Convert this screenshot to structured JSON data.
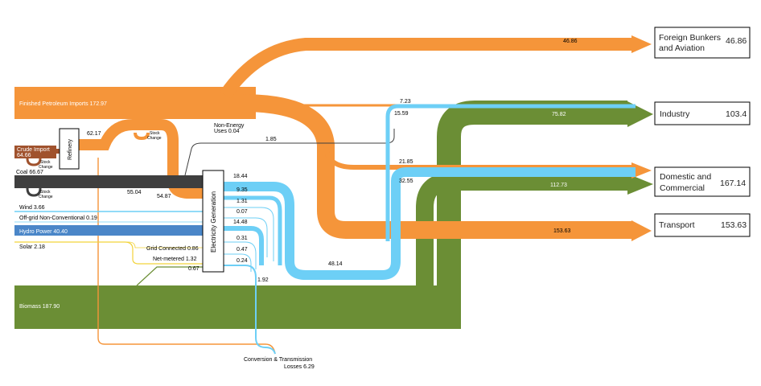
{
  "flows": {
    "finished_petroleum": "Finished Petroleum Imports 172.97",
    "crude_import": "Crude Import",
    "crude_value": "64.66",
    "stock_change": "Stock",
    "stock_change_2": "Change",
    "coal": "Coal 66.67",
    "wind": "Wind 3.66",
    "offgrid": "Off-grid Non-Conventional 0.19",
    "hydro": "Hydro Power  40.40",
    "solar": "Solar  2.18",
    "grid_connected": "Grid Connected  0.86",
    "net_metered": "Net-metered  1.32",
    "biomass": "Biomass 187.90",
    "non_energy": "Non-Energy",
    "non_energy_2": "Uses 0.04",
    "refinery": "Refinery",
    "electricity_generation": "Electricity Generation",
    "conversion_losses": "Conversion & Transmission",
    "conversion_losses_2": "Losses 6.29"
  },
  "values": {
    "v4686": "46.86",
    "v723": "7.23",
    "v1559": "15.59",
    "v7582": "75.82",
    "v6217": "62.17",
    "v185": "1.85",
    "v2185": "21.85",
    "v3255": "32.55",
    "v11273": "112.73",
    "v15363": "153.63",
    "v1844": "18.44",
    "v935": "9.35",
    "v131": "1.31",
    "v007": "0.07",
    "v1448": "14.48",
    "v031": "0.31",
    "v047": "0.47",
    "v024": "0.24",
    "v4814": "48.14",
    "v192": "1.92",
    "v5504": "55.04",
    "v5487": "54.87",
    "v067": "0.67"
  },
  "sectors": [
    {
      "name1": "Foreign Bunkers",
      "name2": "and Aviation",
      "value": "46.86"
    },
    {
      "name1": "Industry",
      "name2": "",
      "value": "103.4"
    },
    {
      "name1": "Domestic and",
      "name2": "Commercial",
      "value": "167.14"
    },
    {
      "name1": "Transport",
      "name2": "",
      "value": "153.63"
    }
  ],
  "colors": {
    "petroleum": "#F5953A",
    "coal": "#3F3F3F",
    "electricity": "#6DCFF6",
    "hydro": "#4A86C8",
    "biomass": "#6B8E35",
    "crude": "#A0522D",
    "solar": "#F2D33A"
  }
}
